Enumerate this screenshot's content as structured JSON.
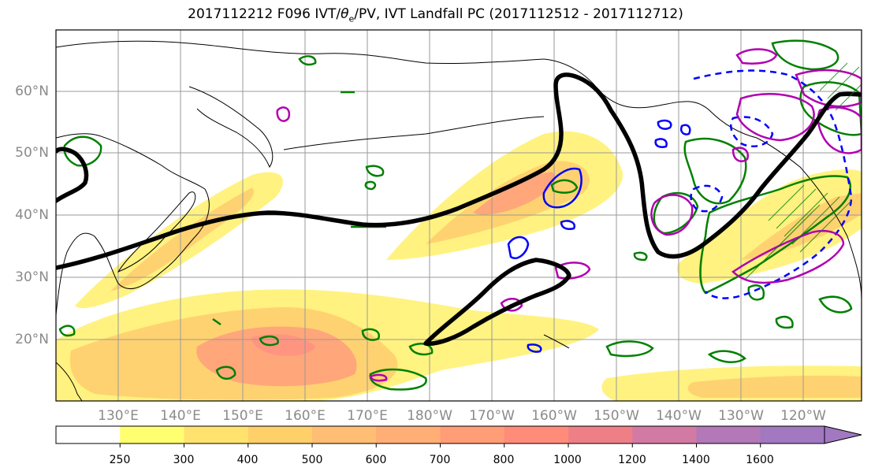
{
  "title": {
    "prefix": "2017112212 F096 IVT/",
    "theta": "θ",
    "theta_sub": "e",
    "suffix": "/PV, IVT Landfall PC (2017112512 - 2017112712)"
  },
  "map": {
    "lat_labels": [
      "60°N",
      "50°N",
      "40°N",
      "30°N",
      "20°N"
    ],
    "lon_labels": [
      "130°E",
      "140°E",
      "150°E",
      "160°E",
      "170°E",
      "180°W",
      "170°W",
      "160°W",
      "150°W",
      "140°W",
      "130°W",
      "120°W"
    ],
    "contour_colors": {
      "ivt_landfall_pc": "#000000",
      "theta_e": "#008000",
      "pv_positive": "#0000ff",
      "pv_negative": "#b000b0"
    }
  },
  "colorbar": {
    "levels": [
      "250",
      "300",
      "400",
      "500",
      "600",
      "700",
      "800",
      "1000",
      "1200",
      "1400",
      "1600"
    ],
    "colors": [
      "#ffffff",
      "#ffff70",
      "#ffe36e",
      "#ffd06a",
      "#ffbe73",
      "#ffae76",
      "#ff9d76",
      "#ff8b7a",
      "#ef7f87",
      "#d27aa4",
      "#b278b8",
      "#a278c0"
    ]
  }
}
